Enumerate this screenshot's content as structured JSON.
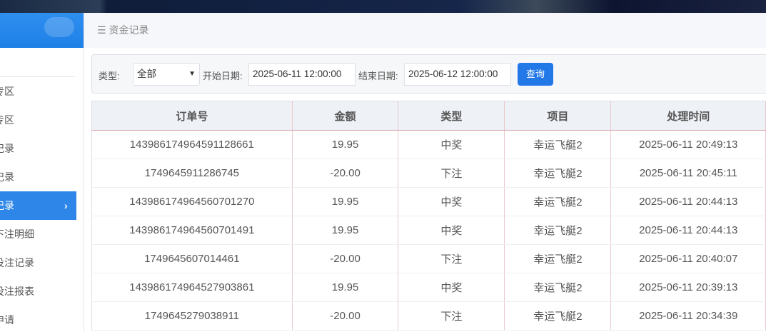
{
  "sidebar": {
    "items": [
      {
        "label": "专区"
      },
      {
        "label": "专区"
      },
      {
        "label": "记录"
      },
      {
        "label": "记录"
      },
      {
        "label": "记录",
        "active": true
      },
      {
        "label": "下注明细"
      },
      {
        "label": "投注记录"
      },
      {
        "label": "投注报表"
      },
      {
        "label": "申请"
      }
    ]
  },
  "breadcrumb": {
    "icon": "menu-icon",
    "title": "资金记录"
  },
  "filter": {
    "type_label": "类型:",
    "type_value": "全部",
    "start_label": "开始日期:",
    "start_value": "2025-06-11 12:00:00",
    "end_label": "结束日期:",
    "end_value": "2025-06-12 12:00:00",
    "query_label": "查询"
  },
  "table": {
    "headers": [
      "订单号",
      "金额",
      "类型",
      "项目",
      "处理时间"
    ],
    "rows": [
      [
        "143986174964591128661",
        "19.95",
        "中奖",
        "幸运飞艇2",
        "2025-06-11 20:49:13"
      ],
      [
        "1749645911286745",
        "-20.00",
        "下注",
        "幸运飞艇2",
        "2025-06-11 20:45:11"
      ],
      [
        "143986174964560701270",
        "19.95",
        "中奖",
        "幸运飞艇2",
        "2025-06-11 20:44:13"
      ],
      [
        "143986174964560701491",
        "19.95",
        "中奖",
        "幸运飞艇2",
        "2025-06-11 20:44:13"
      ],
      [
        "1749645607014461",
        "-20.00",
        "下注",
        "幸运飞艇2",
        "2025-06-11 20:40:07"
      ],
      [
        "143986174964527903861",
        "19.95",
        "中奖",
        "幸运飞艇2",
        "2025-06-11 20:39:13"
      ],
      [
        "1749645279038911",
        "-20.00",
        "下注",
        "幸运飞艇2",
        "2025-06-11 20:34:39"
      ]
    ]
  }
}
